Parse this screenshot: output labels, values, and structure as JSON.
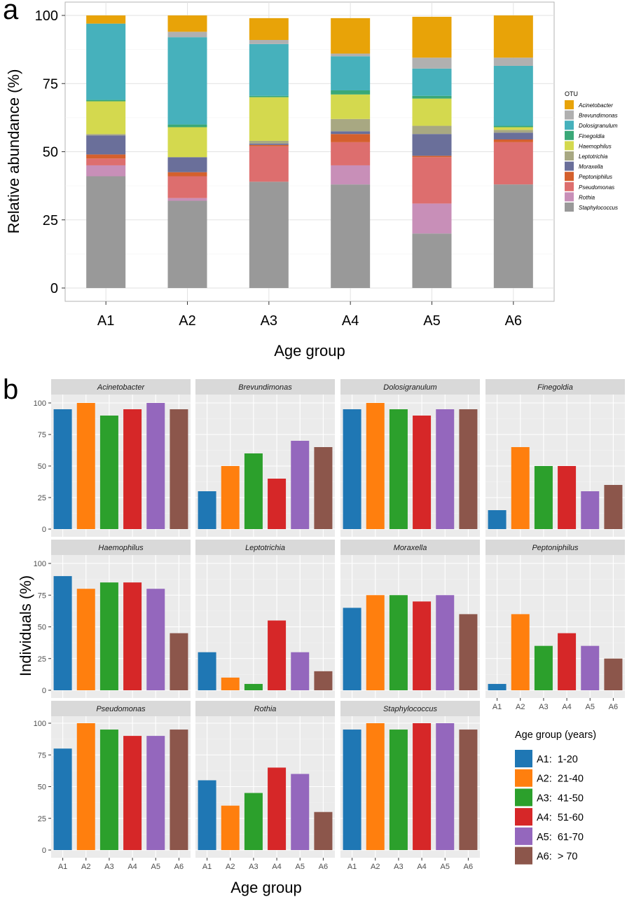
{
  "panel_labels": {
    "a": "a",
    "b": "b"
  },
  "chart_data": [
    {
      "type": "bar",
      "stacked": true,
      "xlabel": "Age group",
      "ylabel": "Relative abundance (%)",
      "ylim": [
        0,
        100
      ],
      "yticks": [
        0,
        25,
        50,
        75,
        100
      ],
      "categories": [
        "A1",
        "A2",
        "A3",
        "A4",
        "A5",
        "A6"
      ],
      "grid": true,
      "legend": {
        "title": "OTU",
        "position": "right"
      },
      "series": [
        {
          "name": "Staphylococcus",
          "color": "#999999",
          "values": [
            41,
            32,
            39,
            38,
            20,
            38
          ]
        },
        {
          "name": "Rothia",
          "color": "#c88fb8",
          "values": [
            4,
            1,
            0,
            7,
            11,
            0
          ]
        },
        {
          "name": "Pseudomonas",
          "color": "#dd6e6e",
          "values": [
            2.5,
            8,
            13,
            8.5,
            17,
            15.5
          ]
        },
        {
          "name": "Peptoniphilus",
          "color": "#d4602d",
          "values": [
            1.5,
            1.5,
            0.5,
            3,
            0.5,
            1
          ]
        },
        {
          "name": "Moraxella",
          "color": "#6a6f9a",
          "values": [
            7,
            5.5,
            0.5,
            1,
            8,
            2.5
          ]
        },
        {
          "name": "Leptotrichia",
          "color": "#a8a882",
          "values": [
            0.5,
            0,
            1,
            4.5,
            3,
            1
          ]
        },
        {
          "name": "Haemophilus",
          "color": "#d4d94e",
          "values": [
            12,
            11,
            16,
            9,
            10,
            1
          ]
        },
        {
          "name": "Finegoldia",
          "color": "#3aa877",
          "values": [
            0.5,
            1,
            0.5,
            1.5,
            1,
            0.5
          ]
        },
        {
          "name": "Dolosigranulum",
          "color": "#46b1bc",
          "values": [
            28,
            32,
            19,
            12.5,
            10,
            22
          ]
        },
        {
          "name": "Brevundimonas",
          "color": "#b0b0b0",
          "values": [
            0,
            2,
            1.5,
            1,
            4,
            3
          ]
        },
        {
          "name": "Acinetobacter",
          "color": "#e8a308",
          "values": [
            3,
            6,
            8,
            13,
            15,
            15.5
          ]
        }
      ]
    },
    {
      "type": "bar",
      "faceted": true,
      "xlabel": "Age group",
      "ylabel": "Individuals (%)",
      "ylim": [
        0,
        100
      ],
      "yticks": [
        0,
        25,
        50,
        75,
        100
      ],
      "categories": [
        "A1",
        "A2",
        "A3",
        "A4",
        "A5",
        "A6"
      ],
      "colors": [
        "#1f77b4",
        "#ff7f0e",
        "#2ca02c",
        "#d62728",
        "#9467bd",
        "#8c564b"
      ],
      "legend": {
        "title": "Age group (years)",
        "position": "bottom-right",
        "entries": [
          "A1:  1-20",
          "A2:  21-40",
          "A3:  41-50",
          "A4:  51-60",
          "A5:  61-70",
          "A6:  > 70"
        ]
      },
      "facets": [
        {
          "name": "Acinetobacter",
          "values": [
            95,
            100,
            90,
            95,
            100,
            95
          ]
        },
        {
          "name": "Brevundimonas",
          "values": [
            30,
            50,
            60,
            40,
            70,
            65
          ]
        },
        {
          "name": "Dolosigranulum",
          "values": [
            95,
            100,
            95,
            90,
            95,
            95
          ]
        },
        {
          "name": "Finegoldia",
          "values": [
            15,
            65,
            50,
            50,
            30,
            35
          ]
        },
        {
          "name": "Haemophilus",
          "values": [
            90,
            80,
            85,
            85,
            80,
            45
          ]
        },
        {
          "name": "Leptotrichia",
          "values": [
            30,
            10,
            5,
            55,
            30,
            15
          ]
        },
        {
          "name": "Moraxella",
          "values": [
            65,
            75,
            75,
            70,
            75,
            60
          ]
        },
        {
          "name": "Peptoniphilus",
          "values": [
            5,
            60,
            35,
            45,
            35,
            25
          ]
        },
        {
          "name": "Pseudomonas",
          "values": [
            80,
            100,
            95,
            90,
            90,
            95
          ]
        },
        {
          "name": "Rothia",
          "values": [
            55,
            35,
            45,
            65,
            60,
            30
          ]
        },
        {
          "name": "Staphylococcus",
          "values": [
            95,
            100,
            95,
            100,
            100,
            95
          ]
        }
      ]
    }
  ]
}
